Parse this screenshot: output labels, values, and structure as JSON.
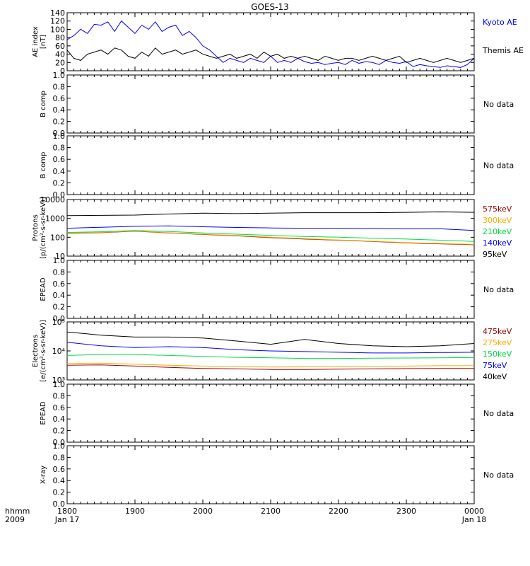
{
  "title": "GOES-13",
  "time_axis": {
    "corner_top": "hhmm",
    "corner_bottom": "2009",
    "ticks": [
      {
        "t": 0,
        "top": "1800",
        "bottom": "Jan 17"
      },
      {
        "t": 1,
        "top": "1900",
        "bottom": ""
      },
      {
        "t": 2,
        "top": "2000",
        "bottom": ""
      },
      {
        "t": 3,
        "top": "2100",
        "bottom": ""
      },
      {
        "t": 4,
        "top": "2200",
        "bottom": ""
      },
      {
        "t": 5,
        "top": "2300",
        "bottom": ""
      },
      {
        "t": 6,
        "top": "0000",
        "bottom": "Jan 18"
      }
    ]
  },
  "colors": {
    "black": "#000000",
    "blue": "#0000ff",
    "green": "#00dd44",
    "orange": "#ffaa00",
    "red": "#dd0000",
    "darkred": "#990000"
  },
  "panels": [
    {
      "id": "ae",
      "ylabel": [
        "AE index",
        "[nT]"
      ],
      "ticks": [
        "0",
        "20",
        "40",
        "60",
        "80",
        "100",
        "120",
        "140"
      ],
      "legend": [
        {
          "text": "Kyoto AE",
          "color": "#0000ff"
        },
        {
          "text": "Themis AE",
          "color": "#000000"
        }
      ]
    },
    {
      "id": "b1",
      "ylabel": [
        "B comp"
      ],
      "ticks": [
        "0.0",
        "0.2",
        "0.4",
        "0.6",
        "0.8",
        "1.0"
      ],
      "nodata": "No data"
    },
    {
      "id": "b2",
      "ylabel": [
        "B comp"
      ],
      "ticks": [
        "0.0",
        "0.2",
        "0.4",
        "0.6",
        "0.8",
        "1.0"
      ],
      "nodata": "No data"
    },
    {
      "id": "protons",
      "ylabel": [
        "Protons",
        "[p/(cm²-s-sr-keV)]"
      ],
      "ticks": [
        "10",
        "100",
        "1000",
        "10000"
      ],
      "legend": [
        {
          "text": "575keV",
          "color": "#990000"
        },
        {
          "text": "300keV",
          "color": "#ffaa00"
        },
        {
          "text": "210keV",
          "color": "#00dd44"
        },
        {
          "text": "140keV",
          "color": "#0000ff"
        },
        {
          "text": "95keV",
          "color": "#000000"
        }
      ]
    },
    {
      "id": "epead1",
      "ylabel": [
        "EPEAD"
      ],
      "ticks": [
        "0.0",
        "0.2",
        "0.4",
        "0.6",
        "0.8",
        "1.0"
      ],
      "nodata": "No data"
    },
    {
      "id": "electrons",
      "ylabel": [
        "Electrons",
        "[e/(cm²-s-sr-keV)]"
      ],
      "ticks": [
        "10³",
        "10⁴",
        "10⁵"
      ],
      "legend": [
        {
          "text": "475keV",
          "color": "#990000"
        },
        {
          "text": "275keV",
          "color": "#ffaa00"
        },
        {
          "text": "150keV",
          "color": "#00dd44"
        },
        {
          "text": "75keV",
          "color": "#0000ff"
        },
        {
          "text": "40keV",
          "color": "#000000"
        }
      ]
    },
    {
      "id": "epead2",
      "ylabel": [
        "EPEAD"
      ],
      "ticks": [
        "0.0",
        "0.2",
        "0.4",
        "0.6",
        "0.8",
        "1.0"
      ],
      "nodata": "No data"
    },
    {
      "id": "xray",
      "ylabel": [
        "X-ray"
      ],
      "ticks": [
        "0.0",
        "0.2",
        "0.4",
        "0.6",
        "0.8",
        "1.0"
      ],
      "nodata": "No data"
    }
  ],
  "chart_data": [
    {
      "type": "line",
      "panel": "ae",
      "ylim": [
        0,
        140
      ],
      "xlim": [
        0,
        6
      ],
      "x_unit": "hours after 1800 UT",
      "series": [
        {
          "name": "Kyoto AE",
          "color": "#0000ff",
          "x": [
            0,
            0.1,
            0.2,
            0.3,
            0.4,
            0.5,
            0.6,
            0.7,
            0.8,
            0.9,
            1.0,
            1.1,
            1.2,
            1.3,
            1.4,
            1.5,
            1.6,
            1.7,
            1.8,
            1.9,
            2.0,
            2.1,
            2.2,
            2.3,
            2.4,
            2.5,
            2.6,
            2.7,
            2.8,
            2.9,
            3.0,
            3.1,
            3.2,
            3.3,
            3.4,
            3.5,
            3.6,
            3.7,
            3.8,
            3.9,
            4.0,
            4.1,
            4.2,
            4.3,
            4.4,
            4.5,
            4.6,
            4.7,
            4.8,
            4.9,
            5.0,
            5.1,
            5.2,
            5.3,
            5.4,
            5.5,
            5.6,
            5.7,
            5.8,
            5.9,
            6.0
          ],
          "values": [
            75,
            85,
            100,
            90,
            112,
            110,
            118,
            95,
            120,
            105,
            90,
            110,
            100,
            118,
            95,
            105,
            110,
            85,
            95,
            80,
            60,
            50,
            35,
            20,
            30,
            25,
            20,
            30,
            25,
            20,
            35,
            20,
            25,
            20,
            30,
            22,
            18,
            20,
            15,
            18,
            20,
            15,
            25,
            18,
            22,
            20,
            15,
            25,
            20,
            18,
            22,
            10,
            15,
            12,
            10,
            8,
            12,
            10,
            8,
            15,
            30
          ]
        },
        {
          "name": "Themis AE",
          "color": "#000000",
          "x": [
            0,
            0.1,
            0.2,
            0.3,
            0.4,
            0.5,
            0.6,
            0.7,
            0.8,
            0.9,
            1.0,
            1.1,
            1.2,
            1.3,
            1.4,
            1.5,
            1.6,
            1.7,
            1.8,
            1.9,
            2.0,
            2.1,
            2.2,
            2.3,
            2.4,
            2.5,
            2.6,
            2.7,
            2.8,
            2.9,
            3.0,
            3.1,
            3.2,
            3.3,
            3.4,
            3.5,
            3.6,
            3.7,
            3.8,
            3.9,
            4.0,
            4.1,
            4.2,
            4.3,
            4.4,
            4.5,
            4.6,
            4.7,
            4.8,
            4.9,
            5.0,
            5.1,
            5.2,
            5.3,
            5.4,
            5.5,
            5.6,
            5.7,
            5.8,
            5.9,
            6.0
          ],
          "values": [
            50,
            30,
            25,
            40,
            45,
            50,
            40,
            55,
            50,
            35,
            30,
            45,
            35,
            55,
            40,
            45,
            50,
            40,
            45,
            50,
            40,
            35,
            30,
            35,
            40,
            30,
            35,
            40,
            30,
            45,
            35,
            40,
            30,
            35,
            30,
            35,
            30,
            25,
            35,
            30,
            25,
            30,
            30,
            25,
            30,
            35,
            30,
            25,
            30,
            35,
            20,
            25,
            30,
            25,
            20,
            25,
            30,
            25,
            20,
            25,
            30
          ]
        }
      ]
    },
    {
      "type": "line",
      "panel": "protons",
      "yscale": "log",
      "ylim": [
        10,
        10000
      ],
      "xlim": [
        0,
        6
      ],
      "series": [
        {
          "name": "575keV",
          "color": "#990000",
          "x": [
            0,
            0.5,
            1.0,
            1.5,
            2.0,
            2.5,
            3.0,
            3.5,
            4.0,
            4.5,
            5.0,
            5.5,
            6.0
          ],
          "values": [
            160,
            175,
            210,
            170,
            140,
            120,
            95,
            80,
            70,
            60,
            50,
            45,
            40
          ]
        },
        {
          "name": "300keV",
          "color": "#ffaa00",
          "x": [
            0,
            0.5,
            1.0,
            1.5,
            2.0,
            2.5,
            3.0,
            3.5,
            4.0,
            4.5,
            5.0,
            5.5,
            6.0
          ],
          "values": [
            165,
            180,
            215,
            175,
            145,
            125,
            100,
            85,
            72,
            62,
            52,
            47,
            42
          ]
        },
        {
          "name": "210keV",
          "color": "#00dd44",
          "x": [
            0,
            0.5,
            1.0,
            1.5,
            2.0,
            2.5,
            3.0,
            3.5,
            4.0,
            4.5,
            5.0,
            5.5,
            6.0
          ],
          "values": [
            180,
            195,
            230,
            200,
            170,
            145,
            125,
            110,
            100,
            90,
            80,
            70,
            60
          ]
        },
        {
          "name": "140keV",
          "color": "#0000ff",
          "x": [
            0,
            0.5,
            1.0,
            1.5,
            2.0,
            2.5,
            3.0,
            3.5,
            4.0,
            4.5,
            5.0,
            5.5,
            6.0
          ],
          "values": [
            300,
            340,
            380,
            400,
            360,
            330,
            310,
            300,
            300,
            290,
            280,
            280,
            230
          ]
        },
        {
          "name": "95keV",
          "color": "#000000",
          "x": [
            0,
            0.5,
            1.0,
            1.5,
            2.0,
            2.5,
            3.0,
            3.5,
            4.0,
            4.5,
            5.0,
            5.5,
            6.0
          ],
          "values": [
            1400,
            1450,
            1500,
            1700,
            1900,
            1800,
            1900,
            2000,
            2000,
            2000,
            2100,
            2200,
            2100
          ]
        }
      ]
    },
    {
      "type": "line",
      "panel": "electrons",
      "yscale": "log",
      "ylim": [
        1000,
        100000
      ],
      "xlim": [
        0,
        6
      ],
      "series": [
        {
          "name": "475keV",
          "color": "#990000",
          "x": [
            0,
            0.5,
            1.0,
            1.5,
            2.0,
            2.5,
            3.0,
            3.5,
            4.0,
            4.5,
            5.0,
            5.5,
            6.0
          ],
          "values": [
            3200,
            3300,
            3000,
            2700,
            2500,
            2400,
            2300,
            2300,
            2350,
            2400,
            2450,
            2500,
            2500
          ]
        },
        {
          "name": "275keV",
          "color": "#ffaa00",
          "x": [
            0,
            0.5,
            1.0,
            1.5,
            2.0,
            2.5,
            3.0,
            3.5,
            4.0,
            4.5,
            5.0,
            5.5,
            6.0
          ],
          "values": [
            3700,
            3800,
            3500,
            3200,
            3000,
            2900,
            2800,
            2850,
            2900,
            2950,
            3000,
            3100,
            3100
          ]
        },
        {
          "name": "150keV",
          "color": "#00dd44",
          "x": [
            0,
            0.5,
            1.0,
            1.5,
            2.0,
            2.5,
            3.0,
            3.5,
            4.0,
            4.5,
            5.0,
            5.5,
            6.0
          ],
          "values": [
            7000,
            7500,
            7500,
            7000,
            6500,
            6000,
            5800,
            5500,
            5500,
            5600,
            5700,
            5800,
            5900
          ]
        },
        {
          "name": "75keV",
          "color": "#0000ff",
          "x": [
            0,
            0.5,
            1.0,
            1.5,
            2.0,
            2.5,
            3.0,
            3.5,
            4.0,
            4.5,
            5.0,
            5.5,
            6.0
          ],
          "values": [
            20000,
            15000,
            13000,
            14000,
            13000,
            11000,
            10000,
            9500,
            9000,
            8500,
            8500,
            8800,
            9000
          ]
        },
        {
          "name": "40keV",
          "color": "#000000",
          "x": [
            0,
            0.5,
            1.0,
            1.5,
            2.0,
            2.5,
            3.0,
            3.5,
            4.0,
            4.5,
            5.0,
            5.5,
            6.0
          ],
          "values": [
            45000,
            35000,
            30000,
            30000,
            28000,
            22000,
            17000,
            25000,
            18000,
            15000,
            14000,
            15000,
            18000
          ]
        }
      ]
    }
  ]
}
